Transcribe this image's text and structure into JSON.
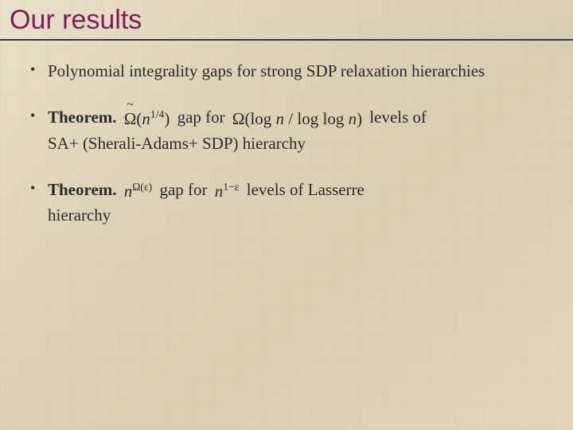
{
  "slide": {
    "title": "Our results",
    "title_color": "#7a1b5a",
    "title_fontsize": 34,
    "underline_color": "#3a3a3a",
    "body_color": "#2a2a2a",
    "body_fontsize": 21,
    "background_gradient": [
      "#e8e0c8",
      "#ddd4b8",
      "#d8ceb0",
      "#e0d6bc"
    ],
    "bullets": [
      {
        "type": "plain",
        "text": "Polynomial integrality gaps for strong SDP relaxation hierarchies"
      },
      {
        "type": "theorem",
        "label": "Theorem.",
        "formula1_tex": "\\tilde{\\Omega}(n^{1/4})",
        "mid1": "gap for",
        "formula2_tex": "\\Omega(\\log n / \\log\\log n)",
        "tail": "levels of",
        "line2": "SA+ (Sherali-Adams+ SDP) hierarchy"
      },
      {
        "type": "theorem",
        "label": "Theorem.",
        "formula1_tex": "n^{\\Omega(\\varepsilon)}",
        "mid1": "gap for",
        "formula2_tex": "n^{1-\\varepsilon}",
        "tail": "levels of Lasserre",
        "line2": "hierarchy"
      }
    ]
  }
}
